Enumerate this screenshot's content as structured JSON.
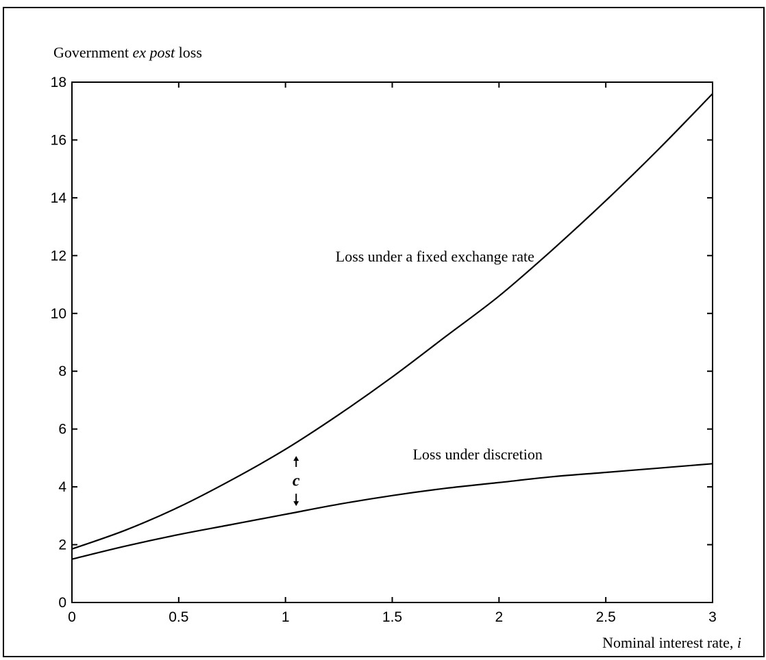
{
  "chart_data": {
    "type": "line",
    "ylabel_parts": [
      "Government ",
      "ex post",
      " loss"
    ],
    "xlabel_parts": [
      "Nominal interest rate, ",
      "i"
    ],
    "xlim": [
      0,
      3
    ],
    "ylim": [
      0,
      18
    ],
    "xticks": [
      "0",
      "0.5",
      "1",
      "1.5",
      "2",
      "2.5",
      "3"
    ],
    "yticks": [
      "0",
      "2",
      "4",
      "6",
      "8",
      "10",
      "12",
      "14",
      "16",
      "18"
    ],
    "grid": false,
    "series": [
      {
        "name": "Loss under a fixed exchange rate",
        "x": [
          0,
          0.25,
          0.5,
          0.75,
          1,
          1.25,
          1.5,
          1.75,
          2,
          2.25,
          2.5,
          2.75,
          3
        ],
        "y": [
          1.85,
          2.5,
          3.3,
          4.25,
          5.3,
          6.5,
          7.8,
          9.2,
          10.6,
          12.2,
          13.9,
          15.7,
          17.6
        ]
      },
      {
        "name": "Loss under discretion",
        "x": [
          0,
          0.25,
          0.5,
          0.75,
          1,
          1.25,
          1.5,
          1.75,
          2,
          2.25,
          2.5,
          2.75,
          3
        ],
        "y": [
          1.5,
          1.95,
          2.35,
          2.7,
          3.05,
          3.4,
          3.7,
          3.95,
          4.15,
          4.35,
          4.5,
          4.65,
          4.8
        ]
      }
    ],
    "annotations": [
      {
        "text": "Loss under a fixed exchange rate",
        "x": 1.7,
        "y": 11.8
      },
      {
        "text": "Loss under discretion",
        "x": 1.9,
        "y": 4.95
      },
      {
        "text": "c",
        "x": 1.05,
        "y": 4.2,
        "arrow_from": 3.1,
        "arrow_to": 5.4
      }
    ]
  }
}
